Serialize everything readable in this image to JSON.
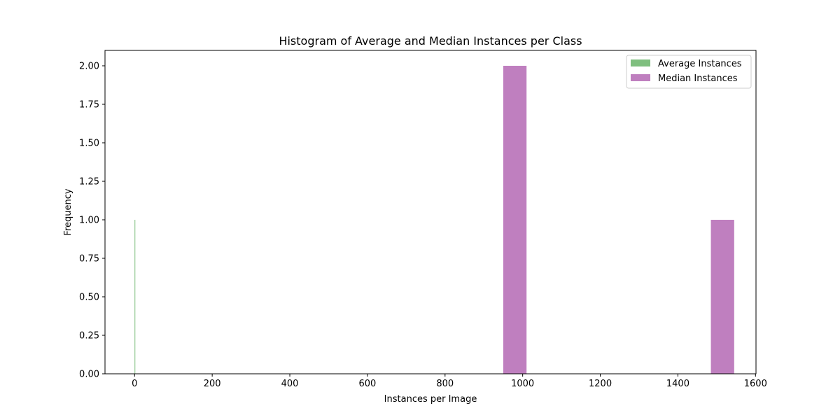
{
  "chart_data": {
    "type": "bar",
    "title": "Histogram of Average and Median Instances per Class",
    "xlabel": "Instances per Image",
    "ylabel": "Frequency",
    "xlim": [
      -76.25,
      1601.25
    ],
    "ylim": [
      0,
      2.1
    ],
    "x_ticks": [
      0,
      200,
      400,
      600,
      800,
      1000,
      1200,
      1400,
      1600
    ],
    "x_tick_labels": [
      "0",
      "200",
      "400",
      "600",
      "800",
      "1000",
      "1200",
      "1400",
      "1600"
    ],
    "y_ticks": [
      0,
      0.25,
      0.5,
      0.75,
      1.0,
      1.25,
      1.5,
      1.75,
      2.0
    ],
    "y_tick_labels": [
      "0.00",
      "0.25",
      "0.50",
      "0.75",
      "1.00",
      "1.25",
      "1.50",
      "1.75",
      "2.00"
    ],
    "grid": false,
    "legend_position": "top-right",
    "series": [
      {
        "name": "Average Instances",
        "color": "#008000",
        "opacity": 0.5,
        "bins": [
          {
            "x0": 0.0,
            "x1": 1.0,
            "count": 1
          }
        ]
      },
      {
        "name": "Median Instances",
        "color": "#800080",
        "opacity": 0.5,
        "bins": [
          {
            "x0": 950,
            "x1": 1010,
            "count": 2
          },
          {
            "x0": 1485,
            "x1": 1545,
            "count": 1
          }
        ]
      }
    ]
  }
}
